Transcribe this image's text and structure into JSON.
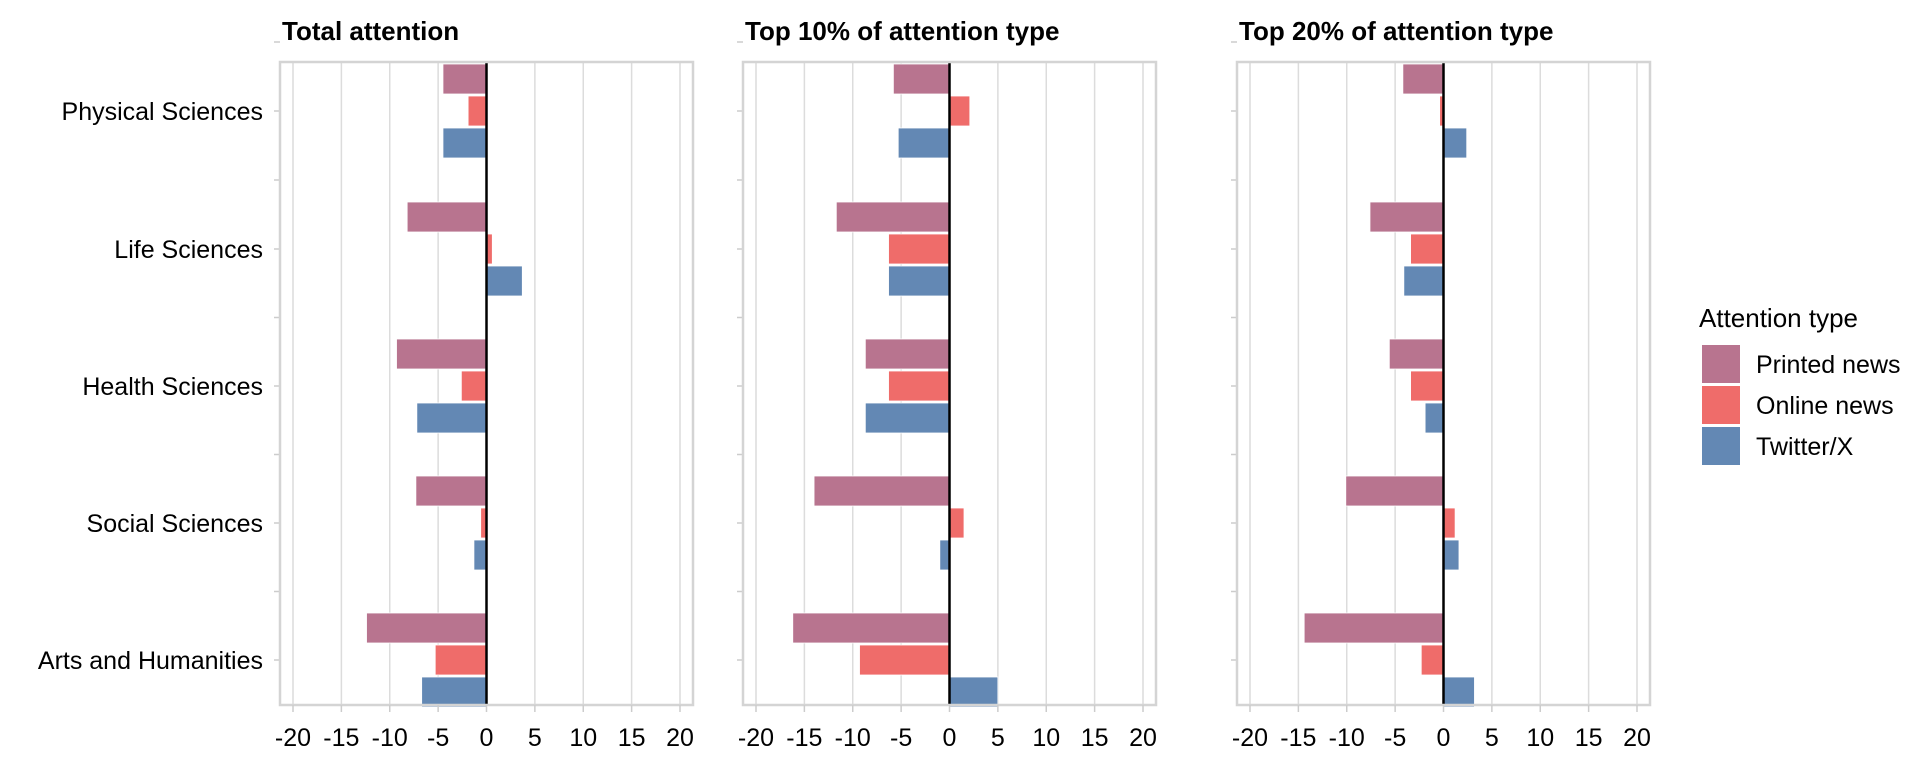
{
  "chart_data": {
    "type": "bar",
    "orientation": "horizontal",
    "categories": [
      "Physical Sciences",
      "Life Sciences",
      "Health Sciences",
      "Social Sciences",
      "Arts and Humanities"
    ],
    "xlim": [
      -20,
      20
    ],
    "xticks": [
      -20,
      -15,
      -10,
      -5,
      0,
      5,
      10,
      15,
      20
    ],
    "grid": true,
    "legend": {
      "title": "Attention type",
      "placement": "right",
      "entries": [
        {
          "name": "Printed news",
          "color": "#b8748f"
        },
        {
          "name": "Online news",
          "color": "#ef6c6a"
        },
        {
          "name": "Twitter/X",
          "color": "#6388b4"
        }
      ]
    },
    "panels": [
      {
        "title": "Total attention",
        "series": [
          {
            "name": "Printed news",
            "values": [
              -4.5,
              -8.2,
              -9.3,
              -7.3,
              -12.4
            ]
          },
          {
            "name": "Online news",
            "values": [
              -1.9,
              0.6,
              -2.6,
              -0.6,
              -5.3
            ]
          },
          {
            "name": "Twitter/X",
            "values": [
              -4.5,
              3.7,
              -7.2,
              -1.3,
              -6.7
            ]
          }
        ]
      },
      {
        "title": "Top 10% of attention type",
        "series": [
          {
            "name": "Printed news",
            "values": [
              -5.8,
              -11.7,
              -8.7,
              -14.0,
              -16.2
            ]
          },
          {
            "name": "Online news",
            "values": [
              2.1,
              -6.3,
              -6.3,
              1.5,
              -9.3
            ]
          },
          {
            "name": "Twitter/X",
            "values": [
              -5.3,
              -6.3,
              -8.7,
              -1.0,
              5.0
            ]
          }
        ]
      },
      {
        "title": "Top 20% of attention type",
        "series": [
          {
            "name": "Printed news",
            "values": [
              -4.2,
              -7.6,
              -5.6,
              -10.1,
              -14.4
            ]
          },
          {
            "name": "Online news",
            "values": [
              -0.4,
              -3.4,
              -3.4,
              1.2,
              -2.3
            ]
          },
          {
            "name": "Twitter/X",
            "values": [
              2.4,
              -4.1,
              -1.9,
              1.6,
              3.2
            ]
          }
        ]
      }
    ]
  }
}
